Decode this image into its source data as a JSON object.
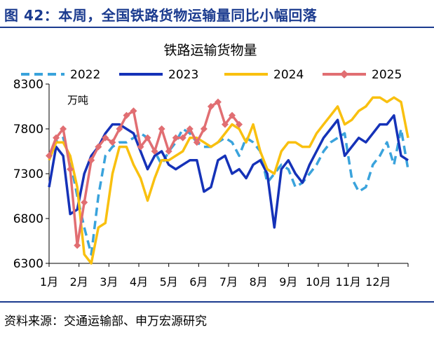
{
  "figure": {
    "label": "图 42：本周，全国铁路货物运输量同比小幅回落",
    "source": "资料来源：交通运输部、申万宏源研究"
  },
  "chart_data": {
    "type": "line",
    "title": "铁路运输货物量",
    "unit": "万吨",
    "ylim": [
      6300,
      8300
    ],
    "yticks": [
      6300,
      6800,
      7300,
      7800,
      8300
    ],
    "xlim": [
      1,
      52
    ],
    "month_labels": [
      "1月",
      "2月",
      "3月",
      "4月",
      "5月",
      "6月",
      "7月",
      "8月",
      "9月",
      "10月",
      "11月",
      "12月"
    ],
    "legend_position": "top",
    "series": [
      {
        "name": "2022",
        "color": "#3aa3dc",
        "style": "dashed",
        "x": [
          1,
          2,
          3,
          4,
          5,
          6,
          7,
          8,
          9,
          10,
          11,
          12,
          13,
          14,
          15,
          16,
          17,
          18,
          19,
          20,
          21,
          22,
          23,
          24,
          25,
          26,
          27,
          28,
          29,
          30,
          31,
          32,
          33,
          34,
          35,
          36,
          37,
          38,
          39,
          40,
          41,
          42,
          43,
          44,
          45,
          46,
          47,
          48,
          49,
          50,
          51,
          52
        ],
        "values": [
          7450,
          7650,
          7700,
          7450,
          7050,
          6700,
          6400,
          7050,
          7500,
          7600,
          7650,
          7650,
          7700,
          7750,
          7700,
          7550,
          7400,
          7550,
          7650,
          7800,
          7750,
          7650,
          7600,
          7600,
          7650,
          7700,
          7650,
          7500,
          7700,
          7650,
          7550,
          7200,
          7300,
          7400,
          7350,
          7150,
          7200,
          7300,
          7400,
          7550,
          7650,
          7700,
          7750,
          7250,
          7100,
          7150,
          7400,
          7500,
          7650,
          7400,
          7800,
          7350
        ]
      },
      {
        "name": "2023",
        "color": "#1532b8",
        "style": "solid",
        "x": [
          1,
          2,
          3,
          4,
          5,
          6,
          7,
          8,
          9,
          10,
          11,
          12,
          13,
          14,
          15,
          16,
          17,
          18,
          19,
          20,
          21,
          22,
          23,
          24,
          25,
          26,
          27,
          28,
          29,
          30,
          31,
          32,
          33,
          34,
          35,
          36,
          37,
          38,
          39,
          40,
          41,
          42,
          43,
          44,
          45,
          46,
          47,
          48,
          49,
          50,
          51,
          52
        ],
        "values": [
          7150,
          7600,
          7500,
          6850,
          6900,
          7300,
          7500,
          7600,
          7750,
          7850,
          7850,
          7800,
          7750,
          7550,
          7350,
          7500,
          7550,
          7400,
          7350,
          7400,
          7450,
          7450,
          7100,
          7150,
          7450,
          7500,
          7300,
          7350,
          7250,
          7400,
          7450,
          7300,
          6700,
          7350,
          7450,
          7300,
          7200,
          7400,
          7550,
          7700,
          7800,
          7900,
          7500,
          7600,
          7700,
          7650,
          7750,
          7850,
          7850,
          7950,
          7500,
          7450
        ]
      },
      {
        "name": "2024",
        "color": "#f9c00f",
        "style": "solid",
        "x": [
          1,
          2,
          3,
          4,
          5,
          6,
          7,
          8,
          9,
          10,
          11,
          12,
          13,
          14,
          15,
          16,
          17,
          18,
          19,
          20,
          21,
          22,
          23,
          24,
          25,
          26,
          27,
          28,
          29,
          30,
          31,
          32,
          33,
          34,
          35,
          36,
          37,
          38,
          39,
          40,
          41,
          42,
          43,
          44,
          45,
          46,
          47,
          48,
          49,
          50,
          51,
          52
        ],
        "values": [
          7450,
          7650,
          7650,
          7500,
          7150,
          6400,
          6300,
          6700,
          6750,
          7300,
          7600,
          7600,
          7400,
          7250,
          7000,
          7250,
          7450,
          7450,
          7500,
          7550,
          7700,
          7700,
          7650,
          7600,
          7650,
          7750,
          7850,
          7800,
          7650,
          7850,
          7550,
          7350,
          7300,
          7550,
          7650,
          7650,
          7600,
          7600,
          7750,
          7850,
          7950,
          8050,
          7850,
          7900,
          8000,
          8050,
          8150,
          8150,
          8100,
          8150,
          8100,
          7700
        ]
      },
      {
        "name": "2025",
        "color": "#e16e72",
        "style": "solid-markers",
        "x": [
          1,
          2,
          3,
          4,
          5,
          6,
          7,
          8,
          9,
          10,
          11,
          12,
          13,
          14,
          15,
          16,
          17,
          18,
          19,
          20,
          21,
          22,
          23,
          24,
          25,
          26,
          27,
          28
        ],
        "values": [
          7500,
          7700,
          7800,
          7350,
          6500,
          6980,
          7450,
          7600,
          7700,
          7650,
          7800,
          7950,
          8000,
          7600,
          7700,
          7550,
          7800,
          7550,
          7700,
          7700,
          7800,
          7650,
          7800,
          8050,
          8100,
          7850,
          7950,
          7850
        ]
      }
    ]
  }
}
